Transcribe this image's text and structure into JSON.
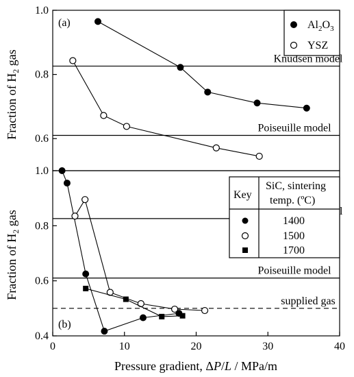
{
  "chart_data": [
    {
      "type": "line",
      "panel_label": "(a)",
      "ylabel": "Fraction of H₂ gas",
      "xlabel": "Pressure gradient, ΔP/L / MPa/m",
      "xlim": [
        0,
        40
      ],
      "ylim": [
        0.5,
        1.0
      ],
      "yticks": [
        0.6,
        0.8,
        1.0
      ],
      "ytick_labels": [
        "0.6",
        "0.8",
        "1.0"
      ],
      "series": [
        {
          "name": "Al₂O₃",
          "marker": "filled-circle",
          "x": [
            6.3,
            17.8,
            21.6,
            28.5,
            35.4
          ],
          "y": [
            0.965,
            0.822,
            0.745,
            0.711,
            0.695
          ]
        },
        {
          "name": "YSZ",
          "marker": "open-circle",
          "x": [
            2.8,
            7.1,
            10.3,
            22.8,
            28.8
          ],
          "y": [
            0.843,
            0.672,
            0.638,
            0.571,
            0.545
          ]
        }
      ],
      "reference_lines": [
        {
          "label": "Knudsen model",
          "y": 0.826,
          "style": "solid"
        },
        {
          "label": "Poiseuille model",
          "y": 0.61,
          "style": "solid"
        }
      ],
      "legend": {
        "placement": "top-right"
      }
    },
    {
      "type": "line",
      "panel_label": "(b)",
      "ylabel": "Fraction of H₂ gas",
      "xlabel": "Pressure gradient, ΔP/L / MPa/m",
      "xlim": [
        0,
        40
      ],
      "ylim": [
        0.4,
        1.0
      ],
      "xticks": [
        0,
        10,
        20,
        30,
        40
      ],
      "xtick_labels": [
        "0",
        "10",
        "20",
        "30",
        "40"
      ],
      "yticks": [
        0.4,
        0.6,
        0.8,
        1.0
      ],
      "ytick_labels": [
        "0.4",
        "0.6",
        "0.8",
        "1.0"
      ],
      "series": [
        {
          "name": "1400",
          "marker": "filled-circle",
          "x": [
            1.3,
            2.0,
            4.6,
            7.2,
            12.6,
            17.6
          ],
          "y": [
            1.0,
            0.955,
            0.625,
            0.417,
            0.466,
            0.482
          ]
        },
        {
          "name": "1500",
          "marker": "open-circle",
          "x": [
            3.1,
            4.5,
            8.0,
            12.3,
            17.0,
            21.2
          ],
          "y": [
            0.835,
            0.895,
            0.558,
            0.517,
            0.497,
            0.492
          ]
        },
        {
          "name": "1700",
          "marker": "filled-square",
          "x": [
            4.6,
            10.2,
            15.2,
            18.1
          ],
          "y": [
            0.572,
            0.533,
            0.47,
            0.473
          ]
        }
      ],
      "reference_lines": [
        {
          "label": "Knudsen model",
          "y": 0.826,
          "style": "solid"
        },
        {
          "label": "Poiseuille model",
          "y": 0.61,
          "style": "solid"
        },
        {
          "label": "supplied gas",
          "y": 0.5,
          "style": "dashed"
        }
      ],
      "legend": {
        "placement": "top-right",
        "key_header": "Key",
        "title_line1": "SiC, sintering",
        "title_line2": "temp. (ºC)",
        "entries": [
          "1400",
          "1500",
          "1700"
        ]
      }
    }
  ],
  "labels": {
    "al2o3_main": "Al",
    "al2o3_sub1": "2",
    "al2o3_mid": "O",
    "al2o3_sub2": "3",
    "ysz": "YSZ",
    "ylabel_main": "Fraction of H",
    "ylabel_sub": "2",
    "ylabel_end": " gas",
    "xlabel_start": "Pressure gradient, Δ",
    "xlabel_p": "P",
    "xlabel_slash": "/",
    "xlabel_l": "L",
    "xlabel_end": " / MPa/m"
  }
}
